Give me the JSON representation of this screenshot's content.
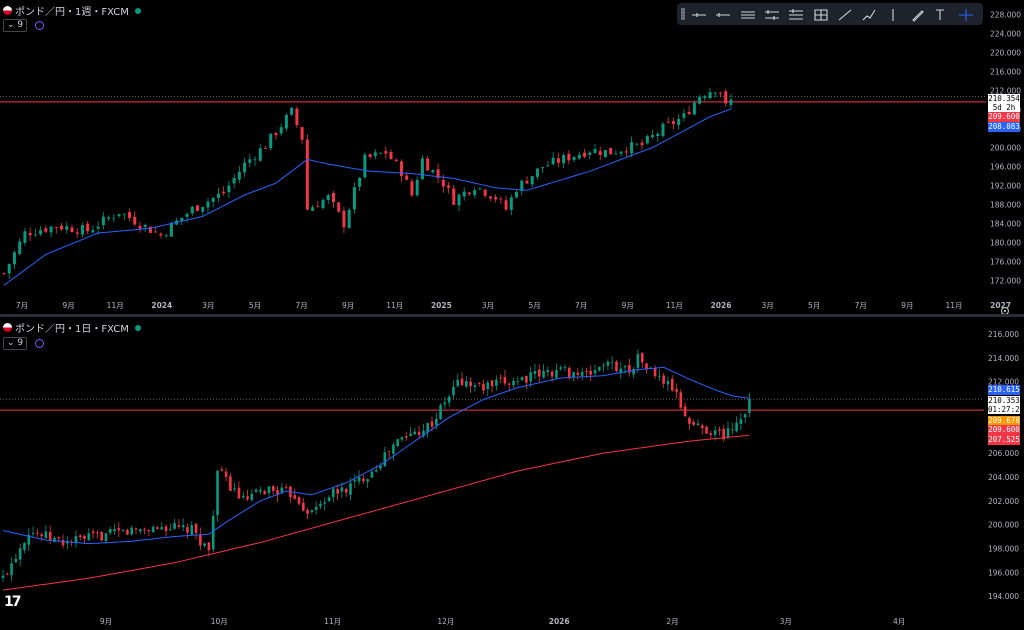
{
  "colors": {
    "up": "#089981",
    "down": "#f23645",
    "ma20": "#2962ff",
    "ma200": "#f23645",
    "bg": "#000000",
    "axis_text": "#b2b5be",
    "price_line": "#f23645"
  },
  "top": {
    "legend": {
      "title": "ポンド／円・1週・FXCM",
      "indicator": "9"
    },
    "price_tags": {
      "last": "210.354",
      "countdown": "5d 2h",
      "line": "209.600",
      "ma": "208.083"
    }
  },
  "bottom": {
    "legend": {
      "title": "ポンド／円・1日・FXCM",
      "indicator": "9"
    },
    "price_tags": {
      "ma20": "210.615",
      "last": "210.353",
      "countdown": "01:27:29",
      "orange": "209.678",
      "line": "209.600",
      "ma200": "207.525"
    }
  },
  "toolbar": {
    "icons": [
      "horizontal-line-icon",
      "horizontal-ray-icon",
      "parallel-channel-icon",
      "regression-trend-icon",
      "fib-channel-icon",
      "fib-box-icon",
      "trend-line-icon",
      "path-icon",
      "vertical-line-icon",
      "brush-icon",
      "text-icon",
      "crosshair-icon"
    ]
  },
  "chart_data": [
    {
      "type": "candlestick",
      "title": "ポンド／円・1週・FXCM",
      "ylim": [
        170,
        230
      ],
      "y_ticks": [
        "228.000",
        "224.000",
        "220.000",
        "216.000",
        "212.000",
        "208.000",
        "204.000",
        "200.000",
        "196.000",
        "192.000",
        "188.000",
        "184.000",
        "180.000",
        "176.000",
        "172.000"
      ],
      "x_ticks": [
        "7月",
        "9月",
        "11月",
        "2024",
        "3月",
        "5月",
        "7月",
        "9月",
        "11月",
        "2025",
        "3月",
        "5月",
        "7月",
        "9月",
        "11月",
        "2026",
        "3月",
        "5月",
        "7月",
        "9月",
        "11月",
        "2027"
      ],
      "x_tick_bold": [
        "2024",
        "2025",
        "2026",
        "2027"
      ],
      "candle_count": 140,
      "close_path": [
        [
          0,
          173.5
        ],
        [
          4,
          182.0
        ],
        [
          10,
          183.5
        ],
        [
          16,
          182.5
        ],
        [
          22,
          186.5
        ],
        [
          26,
          184.0
        ],
        [
          30,
          181.5
        ],
        [
          32,
          183.5
        ],
        [
          36,
          187.0
        ],
        [
          42,
          190.5
        ],
        [
          46,
          196.5
        ],
        [
          50,
          200.5
        ],
        [
          55,
          207.5
        ],
        [
          57,
          202.0
        ],
        [
          58,
          187.0
        ],
        [
          62,
          189.5
        ],
        [
          65,
          184.0
        ],
        [
          69,
          197.5
        ],
        [
          73,
          199.0
        ],
        [
          76,
          195.0
        ],
        [
          78,
          190.0
        ],
        [
          80,
          197.5
        ],
        [
          84,
          192.5
        ],
        [
          86,
          189.0
        ],
        [
          90,
          192.0
        ],
        [
          94,
          189.5
        ],
        [
          96,
          187.0
        ],
        [
          98,
          191.5
        ],
        [
          103,
          196.0
        ],
        [
          108,
          198.0
        ],
        [
          112,
          199.5
        ],
        [
          116,
          199.0
        ],
        [
          119,
          200.0
        ],
        [
          122,
          200.5
        ],
        [
          126,
          204.0
        ],
        [
          130,
          206.5
        ],
        [
          133,
          211.0
        ],
        [
          136,
          212.5
        ],
        [
          137,
          211.8
        ],
        [
          138,
          208.5
        ],
        [
          139,
          209.8
        ]
      ],
      "ma_path": [
        [
          0,
          171.0
        ],
        [
          8,
          177.5
        ],
        [
          18,
          182.0
        ],
        [
          28,
          183.0
        ],
        [
          38,
          185.5
        ],
        [
          46,
          190.0
        ],
        [
          52,
          192.5
        ],
        [
          58,
          197.5
        ],
        [
          62,
          196.5
        ],
        [
          70,
          195.0
        ],
        [
          78,
          194.5
        ],
        [
          86,
          193.5
        ],
        [
          94,
          191.5
        ],
        [
          100,
          191.0
        ],
        [
          106,
          193.0
        ],
        [
          112,
          195.0
        ],
        [
          118,
          197.5
        ],
        [
          124,
          200.0
        ],
        [
          130,
          203.5
        ],
        [
          135,
          206.5
        ],
        [
          139,
          208.1
        ]
      ],
      "price_line": 209.6,
      "last_price": 210.354
    },
    {
      "type": "candlestick",
      "title": "ポンド／円・1日・FXCM",
      "ylim": [
        193,
        217
      ],
      "y_ticks": [
        "216.000",
        "214.000",
        "212.000",
        "210.000",
        "208.000",
        "206.000",
        "204.000",
        "202.000",
        "200.000",
        "198.000",
        "196.000",
        "194.000"
      ],
      "x_ticks": [
        "9月",
        "10月",
        "11月",
        "12月",
        "2026",
        "2月",
        "3月",
        "4月"
      ],
      "x_tick_bold": [
        "2026"
      ],
      "candle_count": 175,
      "close_path": [
        [
          0,
          195.5
        ],
        [
          6,
          199.5
        ],
        [
          14,
          198.5
        ],
        [
          22,
          199.0
        ],
        [
          30,
          199.5
        ],
        [
          38,
          199.8
        ],
        [
          44,
          199.5
        ],
        [
          48,
          197.8
        ],
        [
          50,
          204.5
        ],
        [
          56,
          202.0
        ],
        [
          62,
          203.0
        ],
        [
          68,
          202.5
        ],
        [
          70,
          201.5
        ],
        [
          72,
          201.0
        ],
        [
          76,
          202.5
        ],
        [
          80,
          203.0
        ],
        [
          86,
          204.5
        ],
        [
          92,
          207.0
        ],
        [
          100,
          208.5
        ],
        [
          106,
          212.0
        ],
        [
          112,
          211.5
        ],
        [
          118,
          212.0
        ],
        [
          124,
          212.5
        ],
        [
          130,
          213.0
        ],
        [
          136,
          212.5
        ],
        [
          140,
          213.5
        ],
        [
          146,
          213.0
        ],
        [
          148,
          214.0
        ],
        [
          152,
          212.5
        ],
        [
          156,
          211.5
        ],
        [
          160,
          208.5
        ],
        [
          164,
          208.0
        ],
        [
          168,
          207.5
        ],
        [
          172,
          209.0
        ],
        [
          174,
          210.35
        ]
      ],
      "ma_path": [
        [
          0,
          199.5
        ],
        [
          10,
          198.7
        ],
        [
          20,
          198.4
        ],
        [
          30,
          198.6
        ],
        [
          40,
          199.0
        ],
        [
          48,
          199.2
        ],
        [
          52,
          200.2
        ],
        [
          60,
          202.0
        ],
        [
          66,
          202.8
        ],
        [
          72,
          202.5
        ],
        [
          80,
          203.5
        ],
        [
          88,
          205.0
        ],
        [
          96,
          207.0
        ],
        [
          104,
          209.0
        ],
        [
          112,
          210.5
        ],
        [
          120,
          211.5
        ],
        [
          130,
          212.3
        ],
        [
          140,
          212.5
        ],
        [
          148,
          213.0
        ],
        [
          154,
          213.2
        ],
        [
          160,
          212.2
        ],
        [
          166,
          211.3
        ],
        [
          170,
          210.8
        ],
        [
          174,
          210.6
        ]
      ],
      "ma200_path": [
        [
          0,
          194.5
        ],
        [
          20,
          195.5
        ],
        [
          40,
          196.8
        ],
        [
          60,
          198.5
        ],
        [
          80,
          200.5
        ],
        [
          100,
          202.5
        ],
        [
          120,
          204.5
        ],
        [
          140,
          206.0
        ],
        [
          160,
          207.0
        ],
        [
          174,
          207.5
        ]
      ],
      "price_line": 209.6,
      "last_price": 210.353
    }
  ]
}
